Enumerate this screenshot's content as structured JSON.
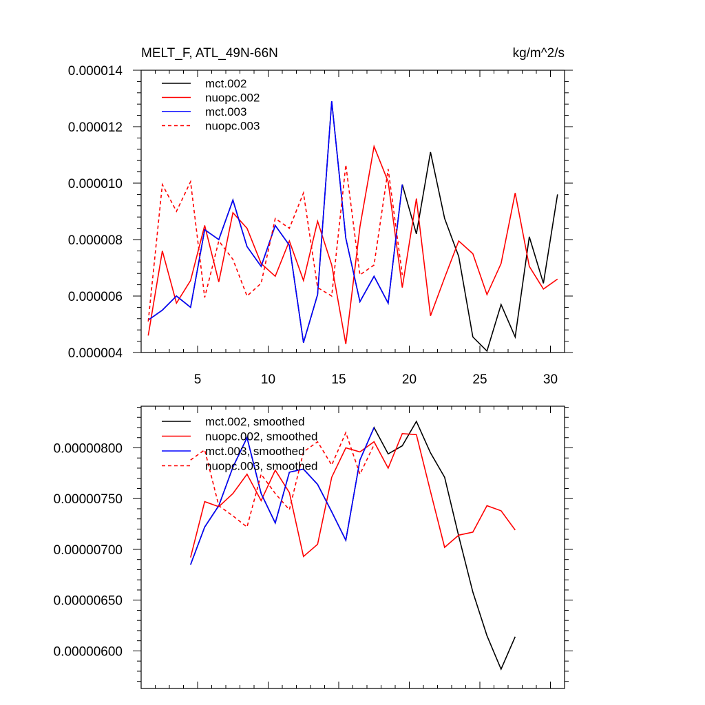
{
  "chart_data": [
    {
      "type": "line",
      "title_left": "MELT_F, ATL_49N-66N",
      "title_right": "kg/m^2/s",
      "xlabel": "",
      "ylabel": "",
      "xlim": [
        1,
        31
      ],
      "ylim": [
        4e-06,
        1.4e-05
      ],
      "grid": false,
      "legend_position": "top-left",
      "x_ticks": [
        5,
        10,
        15,
        20,
        25,
        30
      ],
      "x_tick_labels": [
        "5",
        "10",
        "15",
        "20",
        "25",
        "30"
      ],
      "y_ticks": [
        4e-06,
        6e-06,
        8e-06,
        1e-05,
        1.2e-05,
        1.4e-05
      ],
      "y_tick_labels": [
        "0.000004",
        "0.000006",
        "0.000008",
        "0.000010",
        "0.000012",
        "0.000014"
      ],
      "series": [
        {
          "name": "mct.002",
          "color": "#000000",
          "dash": "solid",
          "x": [
            1.5,
            2.5,
            3.5,
            4.5,
            5.5,
            6.5,
            7.5,
            8.5,
            9.5,
            10.5,
            11.5,
            12.5,
            13.5,
            14.5,
            15.5,
            16.5,
            17.5,
            18.5,
            19.5,
            20.5,
            21.5,
            22.5,
            23.5,
            24.5,
            25.5,
            26.5,
            27.5,
            28.5,
            29.5,
            30.5
          ],
          "values": [
            5.15e-06,
            5.5e-06,
            6e-06,
            5.6e-06,
            8.35e-06,
            8e-06,
            9.4e-06,
            7.75e-06,
            7.05e-06,
            8.5e-06,
            7.8e-06,
            4.35e-06,
            6.05e-06,
            1.29e-05,
            8.05e-06,
            5.8e-06,
            6.7e-06,
            5.75e-06,
            9.95e-06,
            8.2e-06,
            1.11e-05,
            8.75e-06,
            7.4e-06,
            4.55e-06,
            4.05e-06,
            5.7e-06,
            4.55e-06,
            8.1e-06,
            6.45e-06,
            9.6e-06
          ]
        },
        {
          "name": "nuopc.002",
          "color": "#ff0000",
          "dash": "solid",
          "x": [
            1.5,
            2.5,
            3.5,
            4.5,
            5.5,
            6.5,
            7.5,
            8.5,
            9.5,
            10.5,
            11.5,
            12.5,
            13.5,
            14.5,
            15.5,
            16.5,
            17.5,
            18.5,
            19.5,
            20.5,
            21.5,
            22.5,
            23.5,
            24.5,
            25.5,
            26.5,
            27.5,
            28.5,
            29.5,
            30.5
          ],
          "values": [
            4.6e-06,
            7.6e-06,
            5.75e-06,
            6.55e-06,
            8.5e-06,
            6.5e-06,
            8.95e-06,
            8.4e-06,
            7.15e-06,
            6.7e-06,
            7.95e-06,
            6.55e-06,
            8.65e-06,
            7.1e-06,
            4.3e-06,
            8.45e-06,
            1.13e-05,
            1.005e-05,
            6.3e-06,
            9.45e-06,
            5.3e-06,
            6.65e-06,
            7.95e-06,
            7.5e-06,
            6.05e-06,
            7.15e-06,
            9.65e-06,
            7.05e-06,
            6.25e-06,
            6.6e-06
          ]
        },
        {
          "name": "mct.003",
          "color": "#0000ff",
          "dash": "solid",
          "x": [
            1.5,
            2.5,
            3.5,
            4.5,
            5.5,
            6.5,
            7.5,
            8.5,
            9.5,
            10.5,
            11.5,
            12.5,
            13.5,
            14.5,
            15.5,
            16.5,
            17.5,
            18.5,
            19.5
          ],
          "values": [
            5.15e-06,
            5.5e-06,
            6e-06,
            5.6e-06,
            8.35e-06,
            8e-06,
            9.4e-06,
            7.75e-06,
            7.05e-06,
            8.5e-06,
            7.8e-06,
            4.35e-06,
            6.05e-06,
            1.29e-05,
            8.05e-06,
            5.8e-06,
            6.7e-06,
            5.75e-06,
            9.95e-06
          ]
        },
        {
          "name": "nuopc.003",
          "color": "#ff0000",
          "dash": "dashed",
          "x": [
            1.5,
            2.5,
            3.5,
            4.5,
            5.5,
            6.5,
            7.5,
            8.5,
            9.5,
            10.5,
            11.5,
            12.5,
            13.5,
            14.5,
            15.5,
            16.5,
            17.5,
            18.5,
            19.5
          ],
          "values": [
            5.1e-06,
            9.95e-06,
            9e-06,
            1.005e-05,
            5.95e-06,
            7.95e-06,
            7.3e-06,
            6e-06,
            6.45e-06,
            8.75e-06,
            8.4e-06,
            9.65e-06,
            6.3e-06,
            6e-06,
            1.065e-05,
            6.75e-06,
            7.1e-06,
            1.05e-05,
            6.75e-06
          ]
        }
      ]
    },
    {
      "type": "line",
      "title_left": "",
      "title_right": "",
      "xlabel": "",
      "ylabel": "",
      "xlim": [
        1,
        31
      ],
      "ylim": [
        5.63e-06,
        8.41e-06
      ],
      "grid": false,
      "legend_position": "top-left",
      "x_ticks": [
        5,
        10,
        15,
        20,
        25,
        30
      ],
      "x_tick_labels": [],
      "y_ticks": [
        6e-06,
        6.5e-06,
        7e-06,
        7.5e-06,
        8e-06
      ],
      "y_tick_labels": [
        "0.00000600",
        "0.00000650",
        "0.00000700",
        "0.00000750",
        "0.00000800"
      ],
      "series": [
        {
          "name": "mct.002, smoothed",
          "color": "#000000",
          "dash": "solid",
          "x": [
            4.5,
            5.5,
            6.5,
            7.5,
            8.5,
            9.5,
            10.5,
            11.5,
            12.5,
            13.5,
            14.5,
            15.5,
            16.5,
            17.5,
            18.5,
            19.5,
            20.5,
            21.5,
            22.5,
            23.5,
            24.5,
            25.5,
            26.5,
            27.5
          ],
          "values": [
            6.85e-06,
            7.22e-06,
            7.43e-06,
            7.81e-06,
            8.1e-06,
            7.55e-06,
            7.26e-06,
            7.76e-06,
            7.79e-06,
            7.64e-06,
            7.37e-06,
            7.09e-06,
            7.88e-06,
            8.2e-06,
            7.94e-06,
            8.02e-06,
            8.26e-06,
            7.95e-06,
            7.71e-06,
            7.13e-06,
            6.58e-06,
            6.15e-06,
            5.82e-06,
            6.14e-06
          ]
        },
        {
          "name": "nuopc.002, smoothed",
          "color": "#ff0000",
          "dash": "solid",
          "x": [
            4.5,
            5.5,
            6.5,
            7.5,
            8.5,
            9.5,
            10.5,
            11.5,
            12.5,
            13.5,
            14.5,
            15.5,
            16.5,
            17.5,
            18.5,
            19.5,
            20.5,
            21.5,
            22.5,
            23.5,
            24.5,
            25.5,
            26.5,
            27.5
          ],
          "values": [
            6.92e-06,
            7.47e-06,
            7.42e-06,
            7.55e-06,
            7.74e-06,
            7.48e-06,
            7.78e-06,
            7.56e-06,
            6.93e-06,
            7.05e-06,
            7.71e-06,
            8e-06,
            7.96e-06,
            8.06e-06,
            7.8e-06,
            8.14e-06,
            8.13e-06,
            7.57e-06,
            7.02e-06,
            7.14e-06,
            7.17e-06,
            7.43e-06,
            7.38e-06,
            7.19e-06
          ]
        },
        {
          "name": "mct.003, smoothed",
          "color": "#0000ff",
          "dash": "solid",
          "x": [
            4.5,
            5.5,
            6.5,
            7.5,
            8.5,
            9.5,
            10.5,
            11.5,
            12.5,
            13.5,
            14.5,
            15.5,
            16.5,
            17.5
          ],
          "values": [
            6.85e-06,
            7.22e-06,
            7.43e-06,
            7.81e-06,
            8.1e-06,
            7.55e-06,
            7.26e-06,
            7.76e-06,
            7.79e-06,
            7.64e-06,
            7.37e-06,
            7.09e-06,
            7.88e-06,
            8.2e-06
          ]
        },
        {
          "name": "nuopc.003, smoothed",
          "color": "#ff0000",
          "dash": "dashed",
          "x": [
            4.5,
            5.5,
            6.5,
            7.5,
            8.5,
            9.5,
            10.5,
            11.5,
            12.5,
            13.5,
            14.5,
            15.5,
            16.5,
            17.5
          ],
          "values": [
            7.88e-06,
            7.98e-06,
            7.43e-06,
            7.33e-06,
            7.22e-06,
            7.74e-06,
            7.55e-06,
            7.39e-06,
            7.96e-06,
            8.06e-06,
            7.83e-06,
            8.15e-06,
            7.74e-06,
            8.03e-06
          ]
        }
      ]
    }
  ]
}
